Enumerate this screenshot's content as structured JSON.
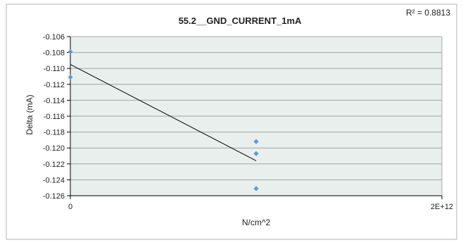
{
  "chart_data": {
    "type": "scatter",
    "title": "55.2__GND_CURRENT_1mA",
    "xlabel": "N/cm^2",
    "ylabel": "Delta (mA)",
    "r_squared_label": "R² = 0.8813",
    "xlim": [
      0,
      2000000000000
    ],
    "ylim": [
      -0.126,
      -0.106
    ],
    "x_ticks": [
      {
        "value": 0,
        "label": "0"
      },
      {
        "value": 2000000000000,
        "label": "2E+12"
      }
    ],
    "y_ticks": [
      {
        "value": -0.106,
        "label": "-0.106"
      },
      {
        "value": -0.108,
        "label": "-0.108"
      },
      {
        "value": -0.11,
        "label": "-0.110"
      },
      {
        "value": -0.112,
        "label": "-0.112"
      },
      {
        "value": -0.114,
        "label": "-0.114"
      },
      {
        "value": -0.116,
        "label": "-0.116"
      },
      {
        "value": -0.118,
        "label": "-0.118"
      },
      {
        "value": -0.12,
        "label": "-0.120"
      },
      {
        "value": -0.122,
        "label": "-0.122"
      },
      {
        "value": -0.124,
        "label": "-0.124"
      },
      {
        "value": -0.126,
        "label": "-0.126"
      }
    ],
    "grid": true,
    "points": [
      {
        "x": 0,
        "y": -0.1079
      },
      {
        "x": 0,
        "y": -0.1111
      },
      {
        "x": 1000000000000,
        "y": -0.1192
      },
      {
        "x": 1000000000000,
        "y": -0.1207
      },
      {
        "x": 1000000000000,
        "y": -0.1251
      }
    ],
    "trendline": {
      "x": [
        0,
        1000000000000
      ],
      "y": [
        -0.1095,
        -0.1216
      ]
    },
    "colors": {
      "plot_background": "#e8efed",
      "marker": "#5b9bd5",
      "trendline": "#000000",
      "grid": "#a6a6a6",
      "axis": "#000000"
    }
  }
}
